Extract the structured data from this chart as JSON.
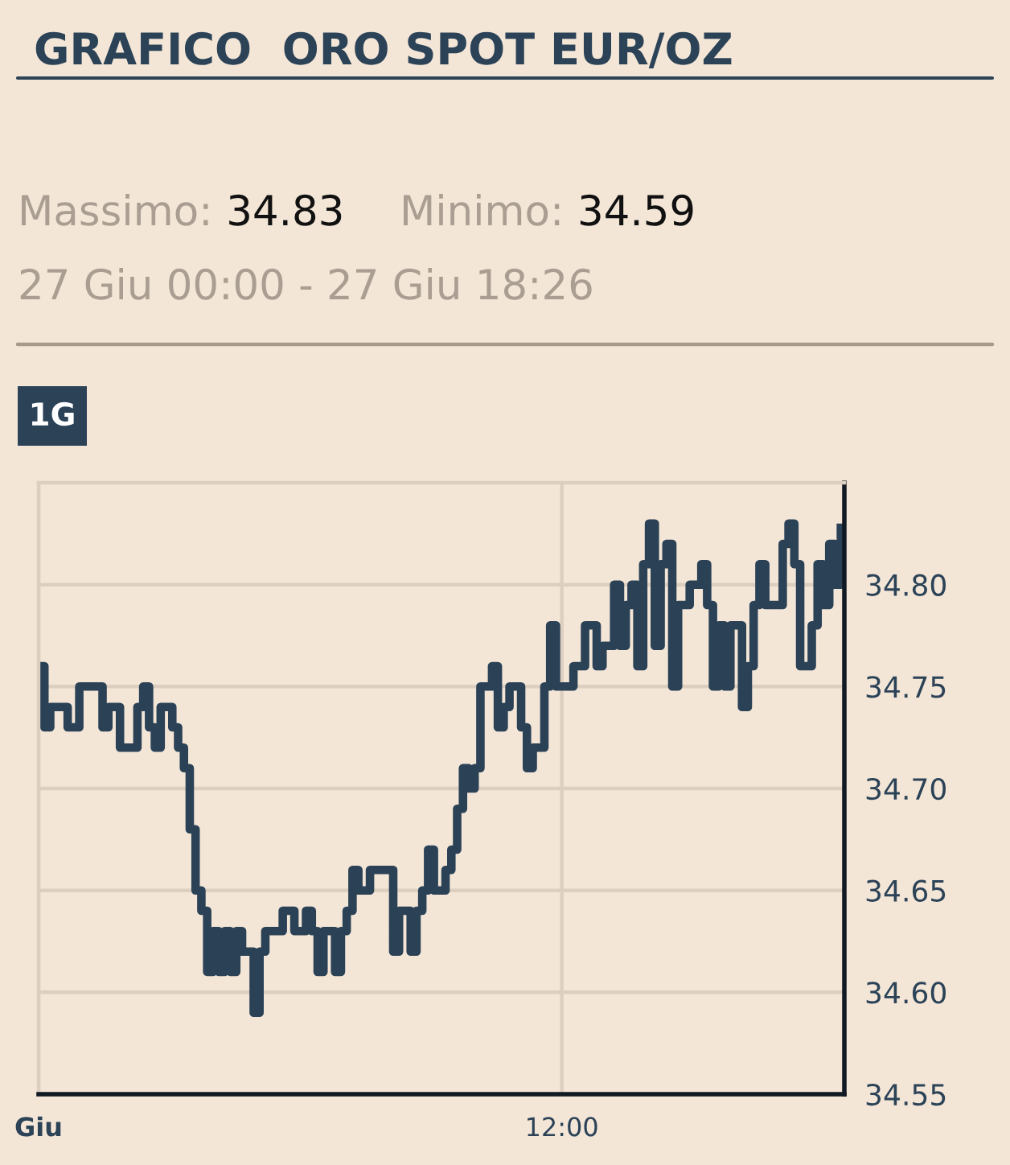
{
  "chart_data": {
    "type": "step",
    "title": "GRAFICO  ORO SPOT EUR/OZ",
    "subtitle": "27 Giu 00:00 - 27 Giu 18:26",
    "annotations": [
      "Massimo:",
      "34.83",
      "Minimo:",
      "34.59",
      "1G"
    ],
    "categories": [
      "Giu",
      null,
      null,
      null,
      null,
      null,
      null,
      null,
      null,
      null,
      null,
      null,
      null,
      null,
      null,
      null,
      null,
      null,
      null,
      null,
      null,
      null,
      null,
      null,
      null,
      null,
      null,
      null,
      null,
      null,
      null,
      null,
      null,
      null,
      null,
      null,
      null,
      null,
      null,
      null,
      null,
      null,
      null,
      null,
      null,
      null,
      null,
      null,
      null,
      null,
      null,
      null,
      null,
      null,
      null,
      null,
      null,
      null,
      null,
      null,
      null,
      null,
      null,
      null,
      null,
      null,
      null,
      null,
      null,
      null,
      null,
      null,
      null,
      null,
      null,
      null,
      null,
      null,
      null,
      null,
      null,
      null,
      null,
      null,
      null,
      null,
      null,
      null,
      null,
      null,
      "12:00",
      null,
      null,
      null,
      null,
      null,
      null,
      null,
      null,
      null,
      null,
      null,
      null,
      null,
      null,
      null,
      null,
      null,
      null,
      null,
      null,
      null,
      null,
      null,
      null,
      null,
      null,
      null,
      null,
      null,
      null,
      null,
      null,
      null,
      null,
      null,
      null,
      null,
      null,
      null,
      null,
      null,
      null,
      null,
      null,
      null,
      null,
      null,
      null
    ],
    "values": [
      34.76,
      34.73,
      34.74,
      34.74,
      34.74,
      34.73,
      34.73,
      34.75,
      34.75,
      34.75,
      34.75,
      34.73,
      34.74,
      34.74,
      34.72,
      34.72,
      34.72,
      34.74,
      34.75,
      34.73,
      34.72,
      34.74,
      34.74,
      34.73,
      34.72,
      34.71,
      34.68,
      34.65,
      34.64,
      34.61,
      34.63,
      34.61,
      34.63,
      34.61,
      34.63,
      34.62,
      34.62,
      34.59,
      34.62,
      34.63,
      34.63,
      34.63,
      34.64,
      34.64,
      34.63,
      34.63,
      34.64,
      34.63,
      34.61,
      34.63,
      34.63,
      34.61,
      34.63,
      34.64,
      34.66,
      34.65,
      34.65,
      34.66,
      34.66,
      34.66,
      34.66,
      34.62,
      34.64,
      34.64,
      34.62,
      34.64,
      34.65,
      34.67,
      34.65,
      34.65,
      34.66,
      34.67,
      34.69,
      34.71,
      34.7,
      34.71,
      34.75,
      34.75,
      34.76,
      34.73,
      34.74,
      34.75,
      34.75,
      34.73,
      34.71,
      34.72,
      34.72,
      34.75,
      34.78,
      34.75,
      34.75,
      34.75,
      34.76,
      34.76,
      34.78,
      34.78,
      34.76,
      34.77,
      34.77,
      34.8,
      34.77,
      34.79,
      34.8,
      34.76,
      34.81,
      34.83,
      34.77,
      34.81,
      34.82,
      34.75,
      34.79,
      34.79,
      34.8,
      34.8,
      34.81,
      34.79,
      34.75,
      34.78,
      34.75,
      34.78,
      34.78,
      34.74,
      34.76,
      34.79,
      34.81,
      34.79,
      34.79,
      34.79,
      34.82,
      34.83,
      34.81,
      34.76,
      34.76,
      34.78,
      34.81,
      34.79,
      34.82,
      34.8,
      34.83
    ],
    "color": "#2b4156",
    "line_style": "solid",
    "grid": true,
    "ylim": [
      34.55,
      34.85
    ],
    "yticks": [
      34.55,
      {
        "value": 34.6,
        "label": "34.60"
      },
      34.65,
      {
        "value": 34.7,
        "label": "34.70"
      },
      34.75,
      {
        "value": 34.8,
        "label": "34.80"
      }
    ]
  }
}
